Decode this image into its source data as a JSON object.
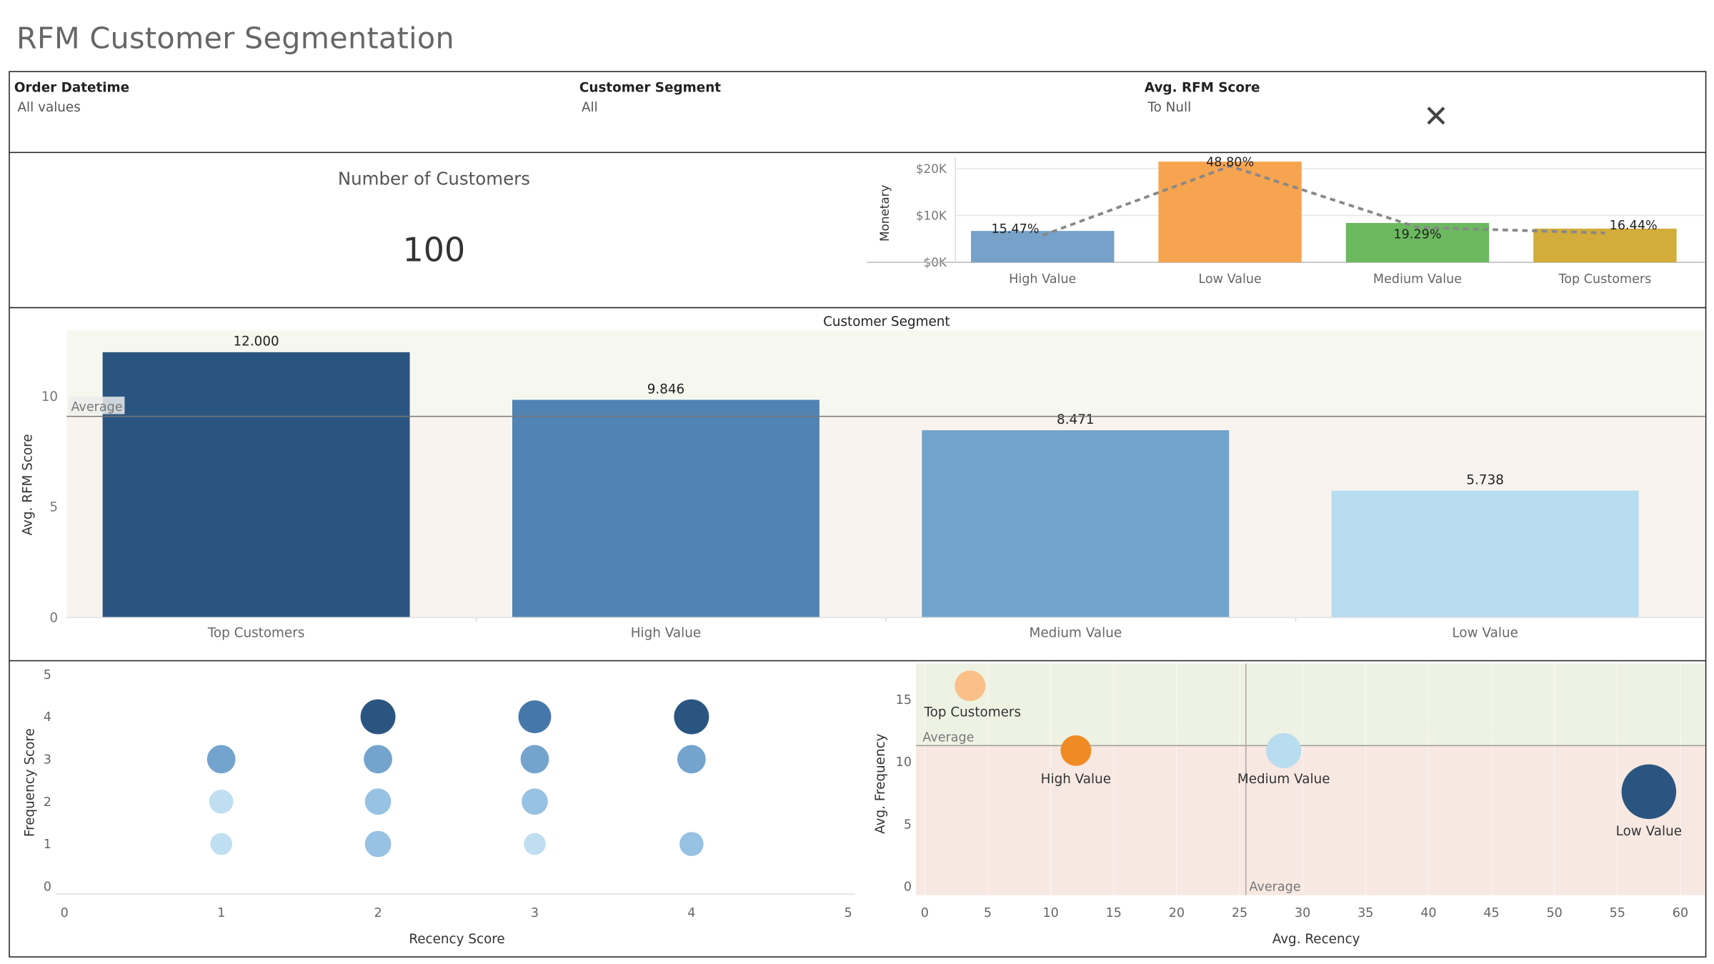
{
  "dashboard": {
    "title": "RFM Customer Segmentation"
  },
  "filters": [
    {
      "label": "Order Datetime",
      "value": "All values"
    },
    {
      "label": "Customer Segment",
      "value": "All"
    },
    {
      "label": "Avg. RFM Score",
      "value": "To Null"
    }
  ],
  "kpi": {
    "title": "Number of Customers",
    "value": "100"
  },
  "colors": {
    "high_value": "#76a1c8",
    "low_value": "#f7a450",
    "medium_value": "#6cb960",
    "top_customers": "#d2ad3c",
    "dark_blue": "#2b5581",
    "mid_blue": "#5183b3",
    "light_blue": "#72a3cc",
    "pale_blue": "#b8dcf0",
    "orange": "#f08a24",
    "light_orange": "#fbbf88"
  },
  "monetary_chart": {
    "chart_data": {
      "type": "bar",
      "ylabel": "Monetary",
      "yticks": [
        "$0K",
        "$10K",
        "$20K"
      ],
      "ylim": [
        0,
        21000
      ],
      "categories": [
        "High Value",
        "Low Value",
        "Medium Value",
        "Top Customers"
      ],
      "values": [
        6700,
        21500,
        8400,
        7200
      ],
      "line_series": {
        "style": "dashed",
        "values": [
          6700,
          21500,
          8400,
          7200
        ]
      },
      "labels": [
        "15.47%",
        "48.80%",
        "19.29%",
        "16.44%"
      ]
    }
  },
  "rfm_bar_chart": {
    "chart_data": {
      "type": "bar",
      "title": "Customer Segment",
      "ylabel": "Avg. RFM Score",
      "yticks": [
        "0",
        "5",
        "10"
      ],
      "ylim": [
        0,
        13
      ],
      "categories": [
        "Top Customers",
        "High Value",
        "Medium Value",
        "Low Value"
      ],
      "values": [
        12.0,
        9.846,
        8.471,
        5.738
      ],
      "labels": [
        "12.000",
        "9.846",
        "8.471",
        "5.738"
      ],
      "average_label": "Average",
      "average_value": 9.1
    }
  },
  "scatter_rf": {
    "chart_data": {
      "type": "scatter",
      "xlabel": "Recency  Score",
      "ylabel": "Frequency Score",
      "xticks": [
        "0",
        "1",
        "2",
        "3",
        "4",
        "5"
      ],
      "yticks": [
        "0",
        "1",
        "2",
        "3",
        "4",
        "5"
      ],
      "xlim": [
        0,
        5
      ],
      "ylim": [
        0,
        5
      ],
      "points": [
        {
          "x": 1,
          "y": 1,
          "shade": "pale",
          "size": 10
        },
        {
          "x": 1,
          "y": 2,
          "shade": "pale",
          "size": 11
        },
        {
          "x": 1,
          "y": 3,
          "shade": "mid",
          "size": 13
        },
        {
          "x": 2,
          "y": 1,
          "shade": "light",
          "size": 12
        },
        {
          "x": 2,
          "y": 2,
          "shade": "light",
          "size": 12
        },
        {
          "x": 2,
          "y": 3,
          "shade": "mid",
          "size": 13
        },
        {
          "x": 2,
          "y": 4,
          "shade": "dark",
          "size": 16
        },
        {
          "x": 3,
          "y": 1,
          "shade": "pale",
          "size": 10
        },
        {
          "x": 3,
          "y": 2,
          "shade": "light",
          "size": 12
        },
        {
          "x": 3,
          "y": 3,
          "shade": "mid",
          "size": 13
        },
        {
          "x": 3,
          "y": 4,
          "shade": "darkmid",
          "size": 15
        },
        {
          "x": 4,
          "y": 1,
          "shade": "light",
          "size": 11
        },
        {
          "x": 4,
          "y": 3,
          "shade": "mid",
          "size": 13
        },
        {
          "x": 4,
          "y": 4,
          "shade": "dark",
          "size": 16
        }
      ]
    }
  },
  "scatter_recency_frequency": {
    "chart_data": {
      "type": "scatter",
      "xlabel": "Avg. Recency",
      "ylabel": "Avg. Frequency",
      "xticks": [
        "0",
        "5",
        "10",
        "15",
        "20",
        "25",
        "30",
        "35",
        "40",
        "45",
        "50",
        "55",
        "60"
      ],
      "yticks": [
        "0",
        "5",
        "10",
        "15"
      ],
      "xlim": [
        0,
        63
      ],
      "ylim": [
        0,
        18
      ],
      "average_x": 25.5,
      "average_y": 11.3,
      "average_x_label": "Average",
      "average_y_label": "Average",
      "points": [
        {
          "name": "Top Customers",
          "x": 3.6,
          "y": 16.1,
          "color": "light_orange",
          "size": 14
        },
        {
          "name": "High Value",
          "x": 12.0,
          "y": 10.9,
          "color": "orange",
          "size": 14
        },
        {
          "name": "Medium Value",
          "x": 28.5,
          "y": 10.9,
          "color": "pale_blue",
          "size": 16
        },
        {
          "name": "Low Value",
          "x": 57.5,
          "y": 7.6,
          "color": "dark_blue",
          "size": 25
        }
      ]
    }
  }
}
